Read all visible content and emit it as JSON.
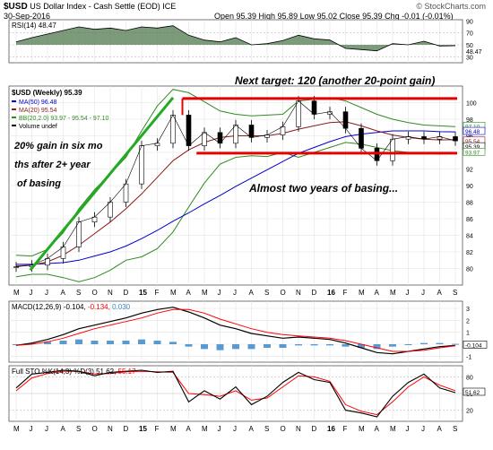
{
  "header": {
    "symbol": "$USD",
    "name": "US Dollar Index - Cash Settle (EOD)",
    "exchange": "ICE",
    "date": "30-Sep-2016",
    "source": "© StockCharts.com",
    "ohlc": "Open 95.39 High 95.89 Low 95.02 Close 95.39 Chg -0.01 (-0.01%)"
  },
  "colors": {
    "price": "#000000",
    "ma50": "#0000cc",
    "ma20": "#8b1a1a",
    "bb": "#2e8b20",
    "rsi_fill": "#4f7a4f",
    "macd": "#000000",
    "signal": "#ff0000",
    "hist": "#3c8ac8",
    "sto_k": "#000000",
    "sto_d": "#ff0000",
    "annotation_line": "#e60000",
    "trend_line": "#22aa22"
  },
  "chart_data": [
    {
      "type": "line",
      "panel": "rsi",
      "legend": "RSI(14) 48.47",
      "y_ticks": [
        30,
        48.47,
        50,
        70,
        90
      ],
      "ylim": [
        20,
        92
      ],
      "x": [
        "2014-05",
        "2014-06",
        "2014-07",
        "2014-08",
        "2014-09",
        "2014-10",
        "2014-11",
        "2014-12",
        "2015-01",
        "2015-02",
        "2015-03",
        "2015-04",
        "2015-05",
        "2015-06",
        "2015-07",
        "2015-08",
        "2015-09",
        "2015-10",
        "2015-11",
        "2015-12",
        "2016-01",
        "2016-02",
        "2016-03",
        "2016-04",
        "2016-05",
        "2016-06",
        "2016-07",
        "2016-08",
        "2016-09"
      ],
      "series": [
        {
          "name": "RSI(14)",
          "values": [
            55,
            62,
            68,
            74,
            80,
            76,
            78,
            74,
            80,
            78,
            82,
            66,
            58,
            55,
            62,
            50,
            52,
            57,
            66,
            60,
            58,
            44,
            42,
            40,
            52,
            50,
            56,
            48,
            48.47
          ]
        }
      ]
    },
    {
      "type": "line",
      "panel": "price",
      "title": "$USD (Weekly) 95.39",
      "legend": [
        "MA(50) 96.48",
        "MA(20) 95.54",
        "BB(20,2.0) 93.97 - 95.54 - 97.10",
        "Volume undef"
      ],
      "ylim": [
        78,
        102
      ],
      "y_ticks": [
        80,
        82,
        84,
        86,
        88,
        90,
        92,
        94,
        96,
        98,
        100
      ],
      "right_labels": [
        "97.10",
        "96.48",
        "95.54",
        "95.39",
        "93.97"
      ],
      "x": [
        "2014-05",
        "2014-06",
        "2014-07",
        "2014-08",
        "2014-09",
        "2014-10",
        "2014-11",
        "2014-12",
        "2015-01",
        "2015-02",
        "2015-03",
        "2015-04",
        "2015-05",
        "2015-06",
        "2015-07",
        "2015-08",
        "2015-09",
        "2015-10",
        "2015-11",
        "2015-12",
        "2016-01",
        "2016-02",
        "2016-03",
        "2016-04",
        "2016-05",
        "2016-06",
        "2016-07",
        "2016-08",
        "2016-09"
      ],
      "series": [
        {
          "name": "$USD",
          "values": [
            80.2,
            80.4,
            81.2,
            82.6,
            85.6,
            86.2,
            88.0,
            90.2,
            94.8,
            95.1,
            98.5,
            94.8,
            96.4,
            95.1,
            97.3,
            95.8,
            96.1,
            97.1,
            100.2,
            98.6,
            98.9,
            96.9,
            94.5,
            93.0,
            95.6,
            95.9,
            95.6,
            95.9,
            95.39
          ]
        },
        {
          "name": "MA(50)",
          "values": [
            80.5,
            80.5,
            80.6,
            80.7,
            81.0,
            81.5,
            82.0,
            82.7,
            83.6,
            84.6,
            85.7,
            86.7,
            87.8,
            88.8,
            89.9,
            90.9,
            91.9,
            92.9,
            93.9,
            94.6,
            95.3,
            95.9,
            96.2,
            96.4,
            96.6,
            96.6,
            96.6,
            96.5,
            96.48
          ]
        },
        {
          "name": "MA(20)",
          "values": [
            80.3,
            80.4,
            80.8,
            81.6,
            82.8,
            84.2,
            85.6,
            87.2,
            89.0,
            91.0,
            93.0,
            94.3,
            95.2,
            95.8,
            96.0,
            96.0,
            96.0,
            96.3,
            96.8,
            97.2,
            97.6,
            97.7,
            97.2,
            96.6,
            96.1,
            95.8,
            95.6,
            95.5,
            95.54
          ]
        },
        {
          "name": "BB upper",
          "values": [
            81.6,
            81.5,
            82.3,
            84.3,
            87.2,
            89.5,
            91.4,
            93.4,
            96.6,
            99.6,
            101.6,
            101.2,
            100.1,
            99.0,
            98.6,
            98.4,
            98.5,
            98.6,
            100.2,
            100.4,
            100.6,
            100.2,
            99.4,
            98.6,
            98.0,
            97.6,
            97.3,
            97.2,
            97.1
          ]
        },
        {
          "name": "BB lower",
          "values": [
            79.0,
            79.3,
            79.3,
            78.9,
            78.4,
            78.9,
            79.8,
            81.0,
            81.4,
            82.4,
            84.4,
            87.4,
            90.3,
            92.6,
            93.4,
            93.6,
            93.5,
            94.0,
            93.4,
            94.0,
            94.6,
            95.2,
            95.0,
            94.6,
            94.2,
            94.0,
            93.9,
            93.8,
            93.97
          ]
        }
      ],
      "annotations": [
        "Next target: 120 (another 20-point gain)",
        "20% gain in six months after 2+ years of basing",
        "Almost two years of basing..."
      ],
      "resistance": 100.5,
      "support": 93.9
    },
    {
      "type": "line",
      "panel": "macd",
      "legend": [
        "MACD(12,26,9) -0.104,",
        "-0.134,",
        "0.030"
      ],
      "ylim": [
        -1.5,
        3.6
      ],
      "y_ticks": [
        -1,
        0,
        1,
        2,
        3
      ],
      "right_label": "-0.104",
      "x": [
        "2014-05",
        "2014-06",
        "2014-07",
        "2014-08",
        "2014-09",
        "2014-10",
        "2014-11",
        "2014-12",
        "2015-01",
        "2015-02",
        "2015-03",
        "2015-04",
        "2015-05",
        "2015-06",
        "2015-07",
        "2015-08",
        "2015-09",
        "2015-10",
        "2015-11",
        "2015-12",
        "2016-01",
        "2016-02",
        "2016-03",
        "2016-04",
        "2016-05",
        "2016-06",
        "2016-07",
        "2016-08",
        "2016-09"
      ],
      "series": [
        {
          "name": "MACD",
          "values": [
            -0.1,
            0.1,
            0.4,
            0.8,
            1.3,
            1.6,
            1.9,
            2.2,
            2.6,
            2.9,
            3.1,
            2.7,
            2.2,
            1.6,
            1.3,
            0.9,
            0.7,
            0.5,
            0.6,
            0.5,
            0.4,
            0.1,
            -0.3,
            -0.7,
            -0.8,
            -0.6,
            -0.4,
            -0.2,
            -0.104
          ]
        },
        {
          "name": "Signal",
          "values": [
            -0.1,
            0.0,
            0.2,
            0.5,
            0.9,
            1.3,
            1.6,
            1.9,
            2.2,
            2.6,
            2.9,
            2.9,
            2.6,
            2.1,
            1.7,
            1.3,
            1.0,
            0.8,
            0.7,
            0.6,
            0.5,
            0.3,
            0.0,
            -0.3,
            -0.6,
            -0.6,
            -0.5,
            -0.3,
            -0.134
          ]
        },
        {
          "name": "Histogram",
          "values": [
            0.0,
            0.1,
            0.2,
            0.3,
            0.4,
            0.3,
            0.3,
            0.3,
            0.4,
            0.3,
            0.2,
            -0.2,
            -0.4,
            -0.5,
            -0.4,
            -0.4,
            -0.3,
            -0.3,
            -0.1,
            -0.1,
            -0.1,
            -0.2,
            -0.3,
            -0.4,
            -0.2,
            0.0,
            0.1,
            0.1,
            0.03
          ]
        }
      ]
    },
    {
      "type": "line",
      "panel": "stochastic",
      "legend": [
        "Full STO %K(14,3) %D(3) 51.62,",
        "55.17"
      ],
      "ylim": [
        0,
        100
      ],
      "y_ticks": [
        20,
        50,
        80
      ],
      "right_label": "51.62",
      "x": [
        "2014-05",
        "2014-06",
        "2014-07",
        "2014-08",
        "2014-09",
        "2014-10",
        "2014-11",
        "2014-12",
        "2015-01",
        "2015-02",
        "2015-03",
        "2015-04",
        "2015-05",
        "2015-06",
        "2015-07",
        "2015-08",
        "2015-09",
        "2015-10",
        "2015-11",
        "2015-12",
        "2016-01",
        "2016-02",
        "2016-03",
        "2016-04",
        "2016-05",
        "2016-06",
        "2016-07",
        "2016-08",
        "2016-09"
      ],
      "series": [
        {
          "name": "%K",
          "values": [
            60,
            85,
            88,
            92,
            90,
            82,
            88,
            90,
            92,
            88,
            90,
            35,
            55,
            40,
            62,
            30,
            45,
            70,
            88,
            75,
            70,
            20,
            15,
            8,
            45,
            70,
            85,
            60,
            51.62
          ]
        },
        {
          "name": "%D",
          "values": [
            55,
            78,
            86,
            90,
            90,
            85,
            86,
            89,
            90,
            89,
            88,
            50,
            48,
            45,
            55,
            38,
            42,
            62,
            82,
            80,
            72,
            30,
            18,
            12,
            35,
            62,
            80,
            65,
            55.17
          ]
        }
      ]
    }
  ],
  "x_axis_labels": [
    "M",
    "J",
    "J",
    "A",
    "S",
    "O",
    "N",
    "D",
    "15",
    "F",
    "M",
    "A",
    "M",
    "J",
    "J",
    "A",
    "S",
    "O",
    "N",
    "D",
    "16",
    "F",
    "M",
    "A",
    "M",
    "J",
    "J",
    "A",
    "S"
  ]
}
